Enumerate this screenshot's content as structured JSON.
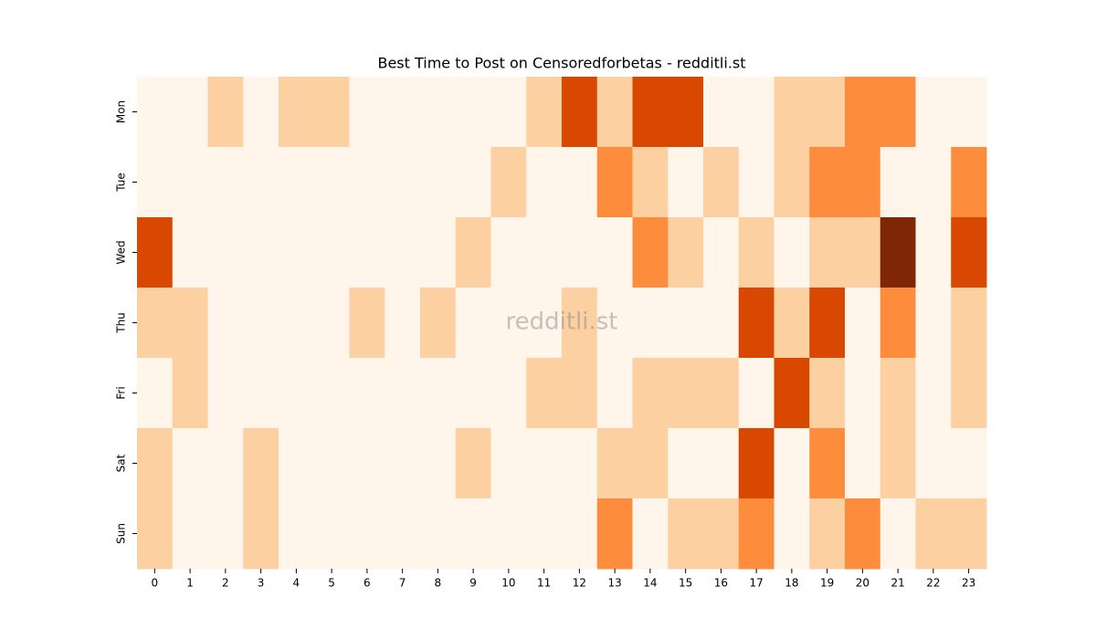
{
  "chart_data": {
    "type": "heatmap",
    "title": "Best Time to Post on Censoredforbetas - redditli.st",
    "watermark": "redditli.st",
    "x": [
      "0",
      "1",
      "2",
      "3",
      "4",
      "5",
      "6",
      "7",
      "8",
      "9",
      "10",
      "11",
      "12",
      "13",
      "14",
      "15",
      "16",
      "17",
      "18",
      "19",
      "20",
      "21",
      "22",
      "23"
    ],
    "y": [
      "Mon",
      "Tue",
      "Wed",
      "Thu",
      "Fri",
      "Sat",
      "Sun"
    ],
    "colors": [
      "#fff5eb",
      "#fdd0a2",
      "#fd8d3c",
      "#d94801",
      "#7f2704"
    ],
    "values": [
      [
        0,
        0,
        1,
        0,
        1,
        1,
        0,
        0,
        0,
        0,
        0,
        1,
        3,
        1,
        3,
        3,
        0,
        0,
        1,
        1,
        2,
        2,
        0,
        0
      ],
      [
        0,
        0,
        0,
        0,
        0,
        0,
        0,
        0,
        0,
        0,
        1,
        0,
        0,
        2,
        1,
        0,
        1,
        0,
        1,
        2,
        2,
        0,
        0,
        2
      ],
      [
        3,
        0,
        0,
        0,
        0,
        0,
        0,
        0,
        0,
        1,
        0,
        0,
        0,
        0,
        2,
        1,
        0,
        1,
        0,
        1,
        1,
        4,
        0,
        3
      ],
      [
        1,
        1,
        0,
        0,
        0,
        0,
        1,
        0,
        1,
        0,
        0,
        0,
        1,
        0,
        0,
        0,
        0,
        3,
        1,
        3,
        0,
        2,
        0,
        1
      ],
      [
        0,
        1,
        0,
        0,
        0,
        0,
        0,
        0,
        0,
        0,
        0,
        1,
        1,
        0,
        1,
        1,
        1,
        0,
        3,
        1,
        0,
        1,
        0,
        1
      ],
      [
        1,
        0,
        0,
        1,
        0,
        0,
        0,
        0,
        0,
        1,
        0,
        0,
        0,
        1,
        1,
        0,
        0,
        3,
        0,
        2,
        0,
        1,
        0,
        0
      ],
      [
        1,
        0,
        0,
        1,
        0,
        0,
        0,
        0,
        0,
        0,
        0,
        0,
        0,
        2,
        0,
        1,
        1,
        2,
        0,
        1,
        2,
        0,
        1,
        1
      ]
    ]
  }
}
